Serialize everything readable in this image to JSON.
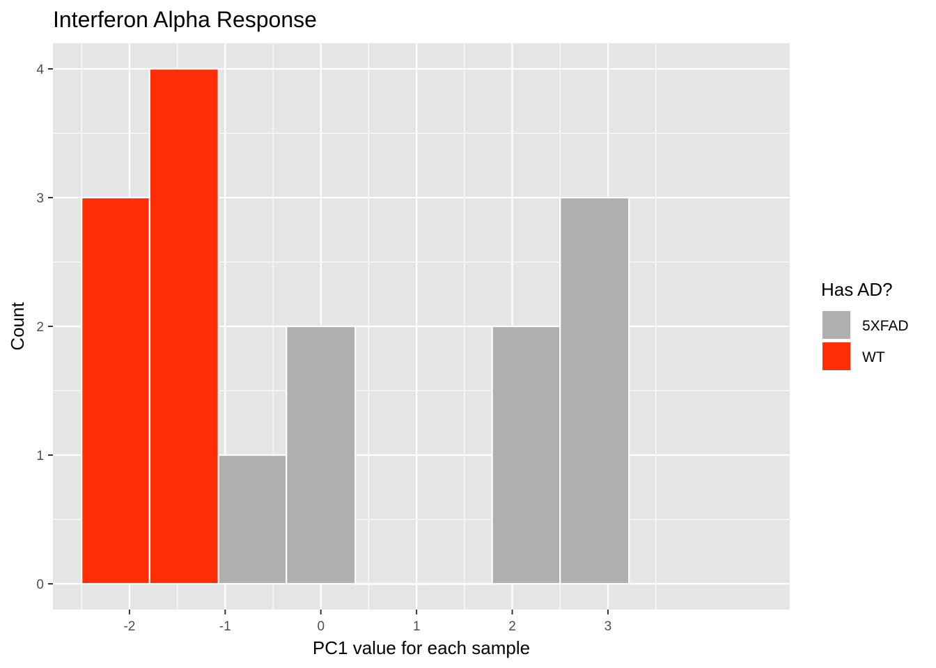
{
  "chart_data": {
    "type": "bar",
    "title": "Interferon Alpha Response",
    "xlabel": "PC1 value for each sample",
    "ylabel": "Count",
    "xlim": [
      -2.8,
      4.9
    ],
    "ylim": [
      -0.2,
      4.2
    ],
    "x_ticks": [
      -2,
      -1,
      0,
      1,
      2,
      3
    ],
    "x_tick_labels": [
      "-2",
      "-1",
      "0",
      "1",
      "2",
      "3"
    ],
    "y_ticks": [
      0,
      1,
      2,
      3,
      4
    ],
    "y_tick_labels": [
      "0",
      "1",
      "2",
      "3",
      "4"
    ],
    "bin_width": 0.72,
    "grid": true,
    "bins": [
      {
        "x_start": -2.5,
        "x_end": -1.79,
        "count": 3,
        "group": "WT"
      },
      {
        "x_start": -1.79,
        "x_end": -1.07,
        "count": 4,
        "group": "WT"
      },
      {
        "x_start": -1.07,
        "x_end": -0.36,
        "count": 1,
        "group": "5XFAD"
      },
      {
        "x_start": -0.36,
        "x_end": 0.36,
        "count": 2,
        "group": "5XFAD"
      },
      {
        "x_start": 0.36,
        "x_end": 1.07,
        "count": 0,
        "group": "5XFAD"
      },
      {
        "x_start": 1.07,
        "x_end": 1.79,
        "count": 0,
        "group": "5XFAD"
      },
      {
        "x_start": 1.79,
        "x_end": 2.5,
        "count": 2,
        "group": "5XFAD"
      },
      {
        "x_start": 2.5,
        "x_end": 3.22,
        "count": 3,
        "group": "5XFAD"
      }
    ],
    "series": [
      {
        "name": "5XFAD",
        "color": "#AFAFAF"
      },
      {
        "name": "WT",
        "color": "#FF2E06"
      }
    ],
    "legend": {
      "title": "Has AD?",
      "placement": "right"
    },
    "panel_background": "#E5E5E5",
    "grid_color": "#FFFFFF"
  }
}
